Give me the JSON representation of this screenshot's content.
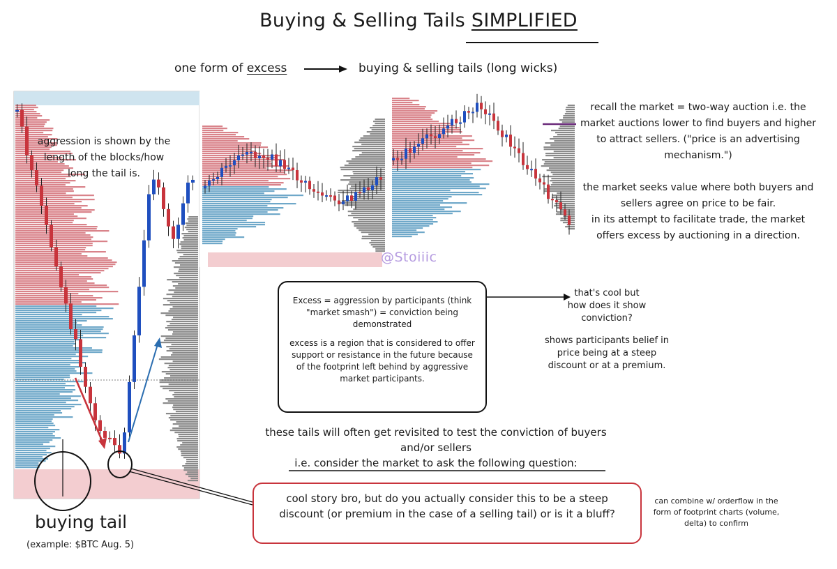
{
  "title": {
    "prefix": "Buying & Selling Tails ",
    "emphasis": "SIMPLIFIED"
  },
  "subtitle": {
    "left": "one form of ",
    "emphasis": "excess",
    "right": "buying & selling tails (long wicks)"
  },
  "left_chart": {
    "annotation": "aggression is shown by the length of the blocks/how long the tail is."
  },
  "watermark": "@Stoiiic",
  "right_notes": {
    "p1": "recall the market = two-way auction i.e. the market auctions lower to find buyers and higher to attract sellers. (\"price is an advertising mechanism.\")",
    "p2": "the market seeks value where both buyers and sellers agree on price to be fair.",
    "p3": "in its attempt to facilitate trade, the market offers excess by auctioning in a direction."
  },
  "excess_box": {
    "p1": "Excess = aggression by participants (think \"market smash\") = conviction being demonstrated",
    "p2": "excess is a region that is considered to offer support or resistance in the future because of the footprint left behind by aggressive market participants."
  },
  "cool_note": {
    "p1": "that's cool but how does it show conviction?",
    "p2": "shows participants belief in price being at a steep discount or at a premium."
  },
  "revisit": {
    "line1": "these tails will often get revisited to test the conviction of buyers and/or sellers",
    "line2": "i.e. consider the market to ask the following question:"
  },
  "question_box": "cool story bro, but do you actually consider this to be a steep discount (or premium in the case of a selling tail) or is it a bluff?",
  "orderflow_note": "can combine w/ orderflow in the form of footprint charts (volume, delta) to confirm",
  "buying_tail": {
    "label": "buying tail",
    "example": "(example: $BTC Aug. 5)"
  },
  "colors": {
    "bull": "#1f4fbf",
    "bear": "#c8343c",
    "profile_red": "#d9838a",
    "profile_blue": "#6fa8c9",
    "gray_profile": "#8a8a8a",
    "tail_zone": "#f3cdd0",
    "top_zone": "#cfe4ef"
  }
}
